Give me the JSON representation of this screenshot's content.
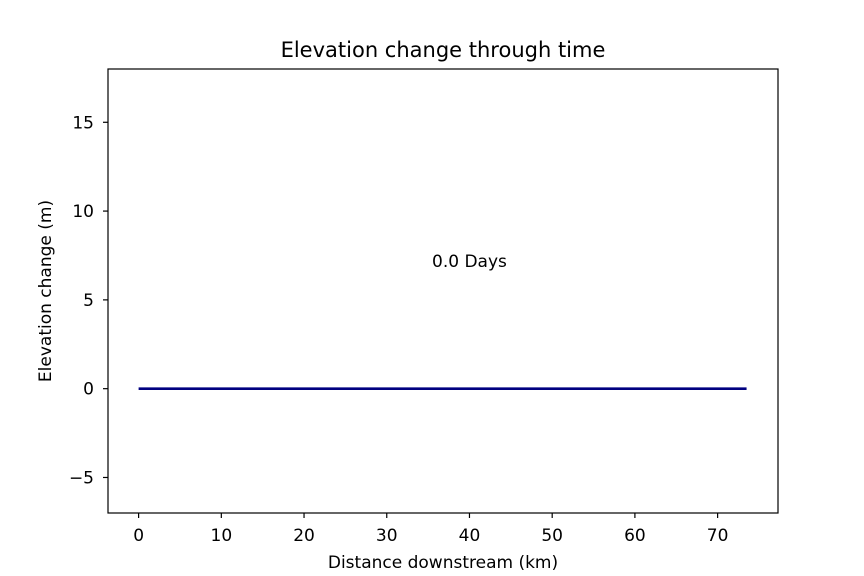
{
  "chart_data": {
    "type": "line",
    "title": "Elevation change through time",
    "xlabel": "Distance downstream (km)",
    "ylabel": "Elevation change (m)",
    "xlim": [
      -3.7,
      77.3
    ],
    "ylim": [
      -7,
      18
    ],
    "xticks": [
      0,
      10,
      20,
      30,
      40,
      50,
      60,
      70
    ],
    "yticks": [
      -5,
      0,
      5,
      10,
      15
    ],
    "grid": false,
    "annotation": {
      "text": "0.0 Days",
      "x": 40,
      "y": 7.2
    },
    "series": [
      {
        "color": "#000080",
        "x": [
          0,
          73.5
        ],
        "y": [
          0,
          0
        ]
      }
    ]
  }
}
